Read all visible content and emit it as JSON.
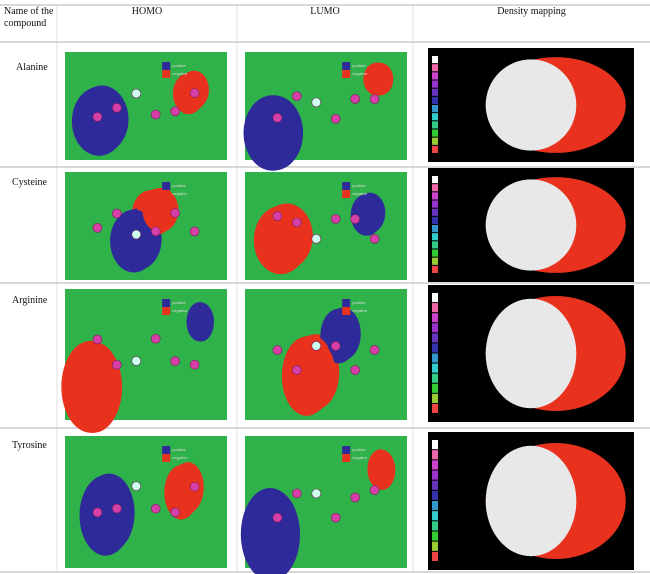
{
  "table": {
    "header": [
      "Name of the compound",
      "HOMO",
      "LUMO",
      "Density mapping"
    ],
    "rows": [
      "Alanine",
      "Cysteine",
      "Arginine",
      "Tyrosine"
    ],
    "legend": [
      "positive",
      "negative"
    ]
  }
}
